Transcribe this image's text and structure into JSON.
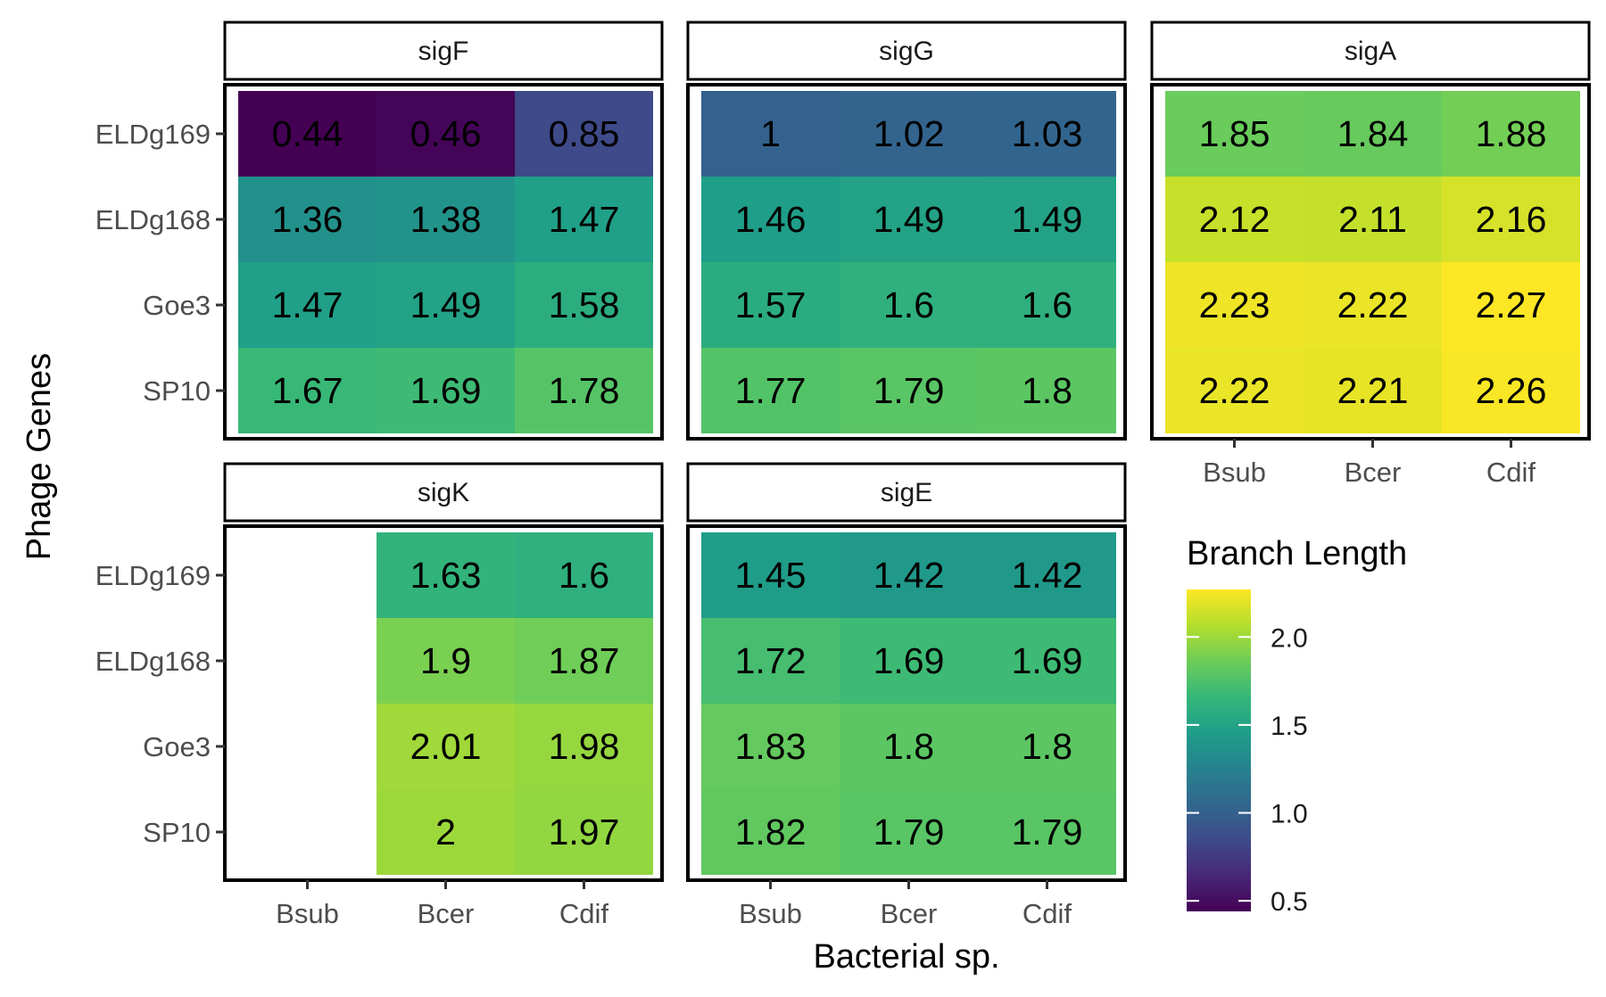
{
  "chart_data": {
    "type": "heatmap",
    "xlabel": "Bacterial sp.",
    "ylabel": "Phage Genes",
    "x_categories": [
      "Bsub",
      "Bcer",
      "Cdif"
    ],
    "y_categories": [
      "ELDg169",
      "ELDg168",
      "Goe3",
      "SP10"
    ],
    "legend": {
      "title": "Branch Length",
      "placement": "right",
      "ticks": [
        "2.0",
        "1.5",
        "1.0",
        "0.5"
      ],
      "tick_values": [
        2.0,
        1.5,
        1.0,
        0.5
      ],
      "range": [
        0.44,
        2.27
      ],
      "palette": "viridis"
    },
    "panels": [
      {
        "name": "sigF",
        "values": [
          [
            0.44,
            0.46,
            0.85
          ],
          [
            1.36,
            1.38,
            1.47
          ],
          [
            1.47,
            1.49,
            1.58
          ],
          [
            1.67,
            1.69,
            1.78
          ]
        ],
        "labels": [
          [
            "0.44",
            "0.46",
            "0.85"
          ],
          [
            "1.36",
            "1.38",
            "1.47"
          ],
          [
            "1.47",
            "1.49",
            "1.58"
          ],
          [
            "1.67",
            "1.69",
            "1.78"
          ]
        ]
      },
      {
        "name": "sigG",
        "values": [
          [
            1,
            1.02,
            1.03
          ],
          [
            1.46,
            1.49,
            1.49
          ],
          [
            1.57,
            1.6,
            1.6
          ],
          [
            1.77,
            1.79,
            1.8
          ]
        ],
        "labels": [
          [
            "1",
            "1.02",
            "1.03"
          ],
          [
            "1.46",
            "1.49",
            "1.49"
          ],
          [
            "1.57",
            "1.6",
            "1.6"
          ],
          [
            "1.77",
            "1.79",
            "1.8"
          ]
        ]
      },
      {
        "name": "sigA",
        "values": [
          [
            1.85,
            1.84,
            1.88
          ],
          [
            2.12,
            2.11,
            2.16
          ],
          [
            2.23,
            2.22,
            2.27
          ],
          [
            2.22,
            2.21,
            2.26
          ]
        ],
        "labels": [
          [
            "1.85",
            "1.84",
            "1.88"
          ],
          [
            "2.12",
            "2.11",
            "2.16"
          ],
          [
            "2.23",
            "2.22",
            "2.27"
          ],
          [
            "2.22",
            "2.21",
            "2.26"
          ]
        ]
      },
      {
        "name": "sigK",
        "values": [
          [
            null,
            1.63,
            1.6
          ],
          [
            null,
            1.9,
            1.87
          ],
          [
            null,
            2.01,
            1.98
          ],
          [
            null,
            2,
            1.97
          ]
        ],
        "labels": [
          [
            null,
            "1.63",
            "1.6"
          ],
          [
            null,
            "1.9",
            "1.87"
          ],
          [
            null,
            "2.01",
            "1.98"
          ],
          [
            null,
            "2",
            "1.97"
          ]
        ]
      },
      {
        "name": "sigE",
        "values": [
          [
            1.45,
            1.42,
            1.42
          ],
          [
            1.72,
            1.69,
            1.69
          ],
          [
            1.83,
            1.8,
            1.8
          ],
          [
            1.82,
            1.79,
            1.79
          ]
        ],
        "labels": [
          [
            "1.45",
            "1.42",
            "1.42"
          ],
          [
            "1.72",
            "1.69",
            "1.69"
          ],
          [
            "1.83",
            "1.8",
            "1.8"
          ],
          [
            "1.82",
            "1.79",
            "1.79"
          ]
        ]
      }
    ]
  }
}
